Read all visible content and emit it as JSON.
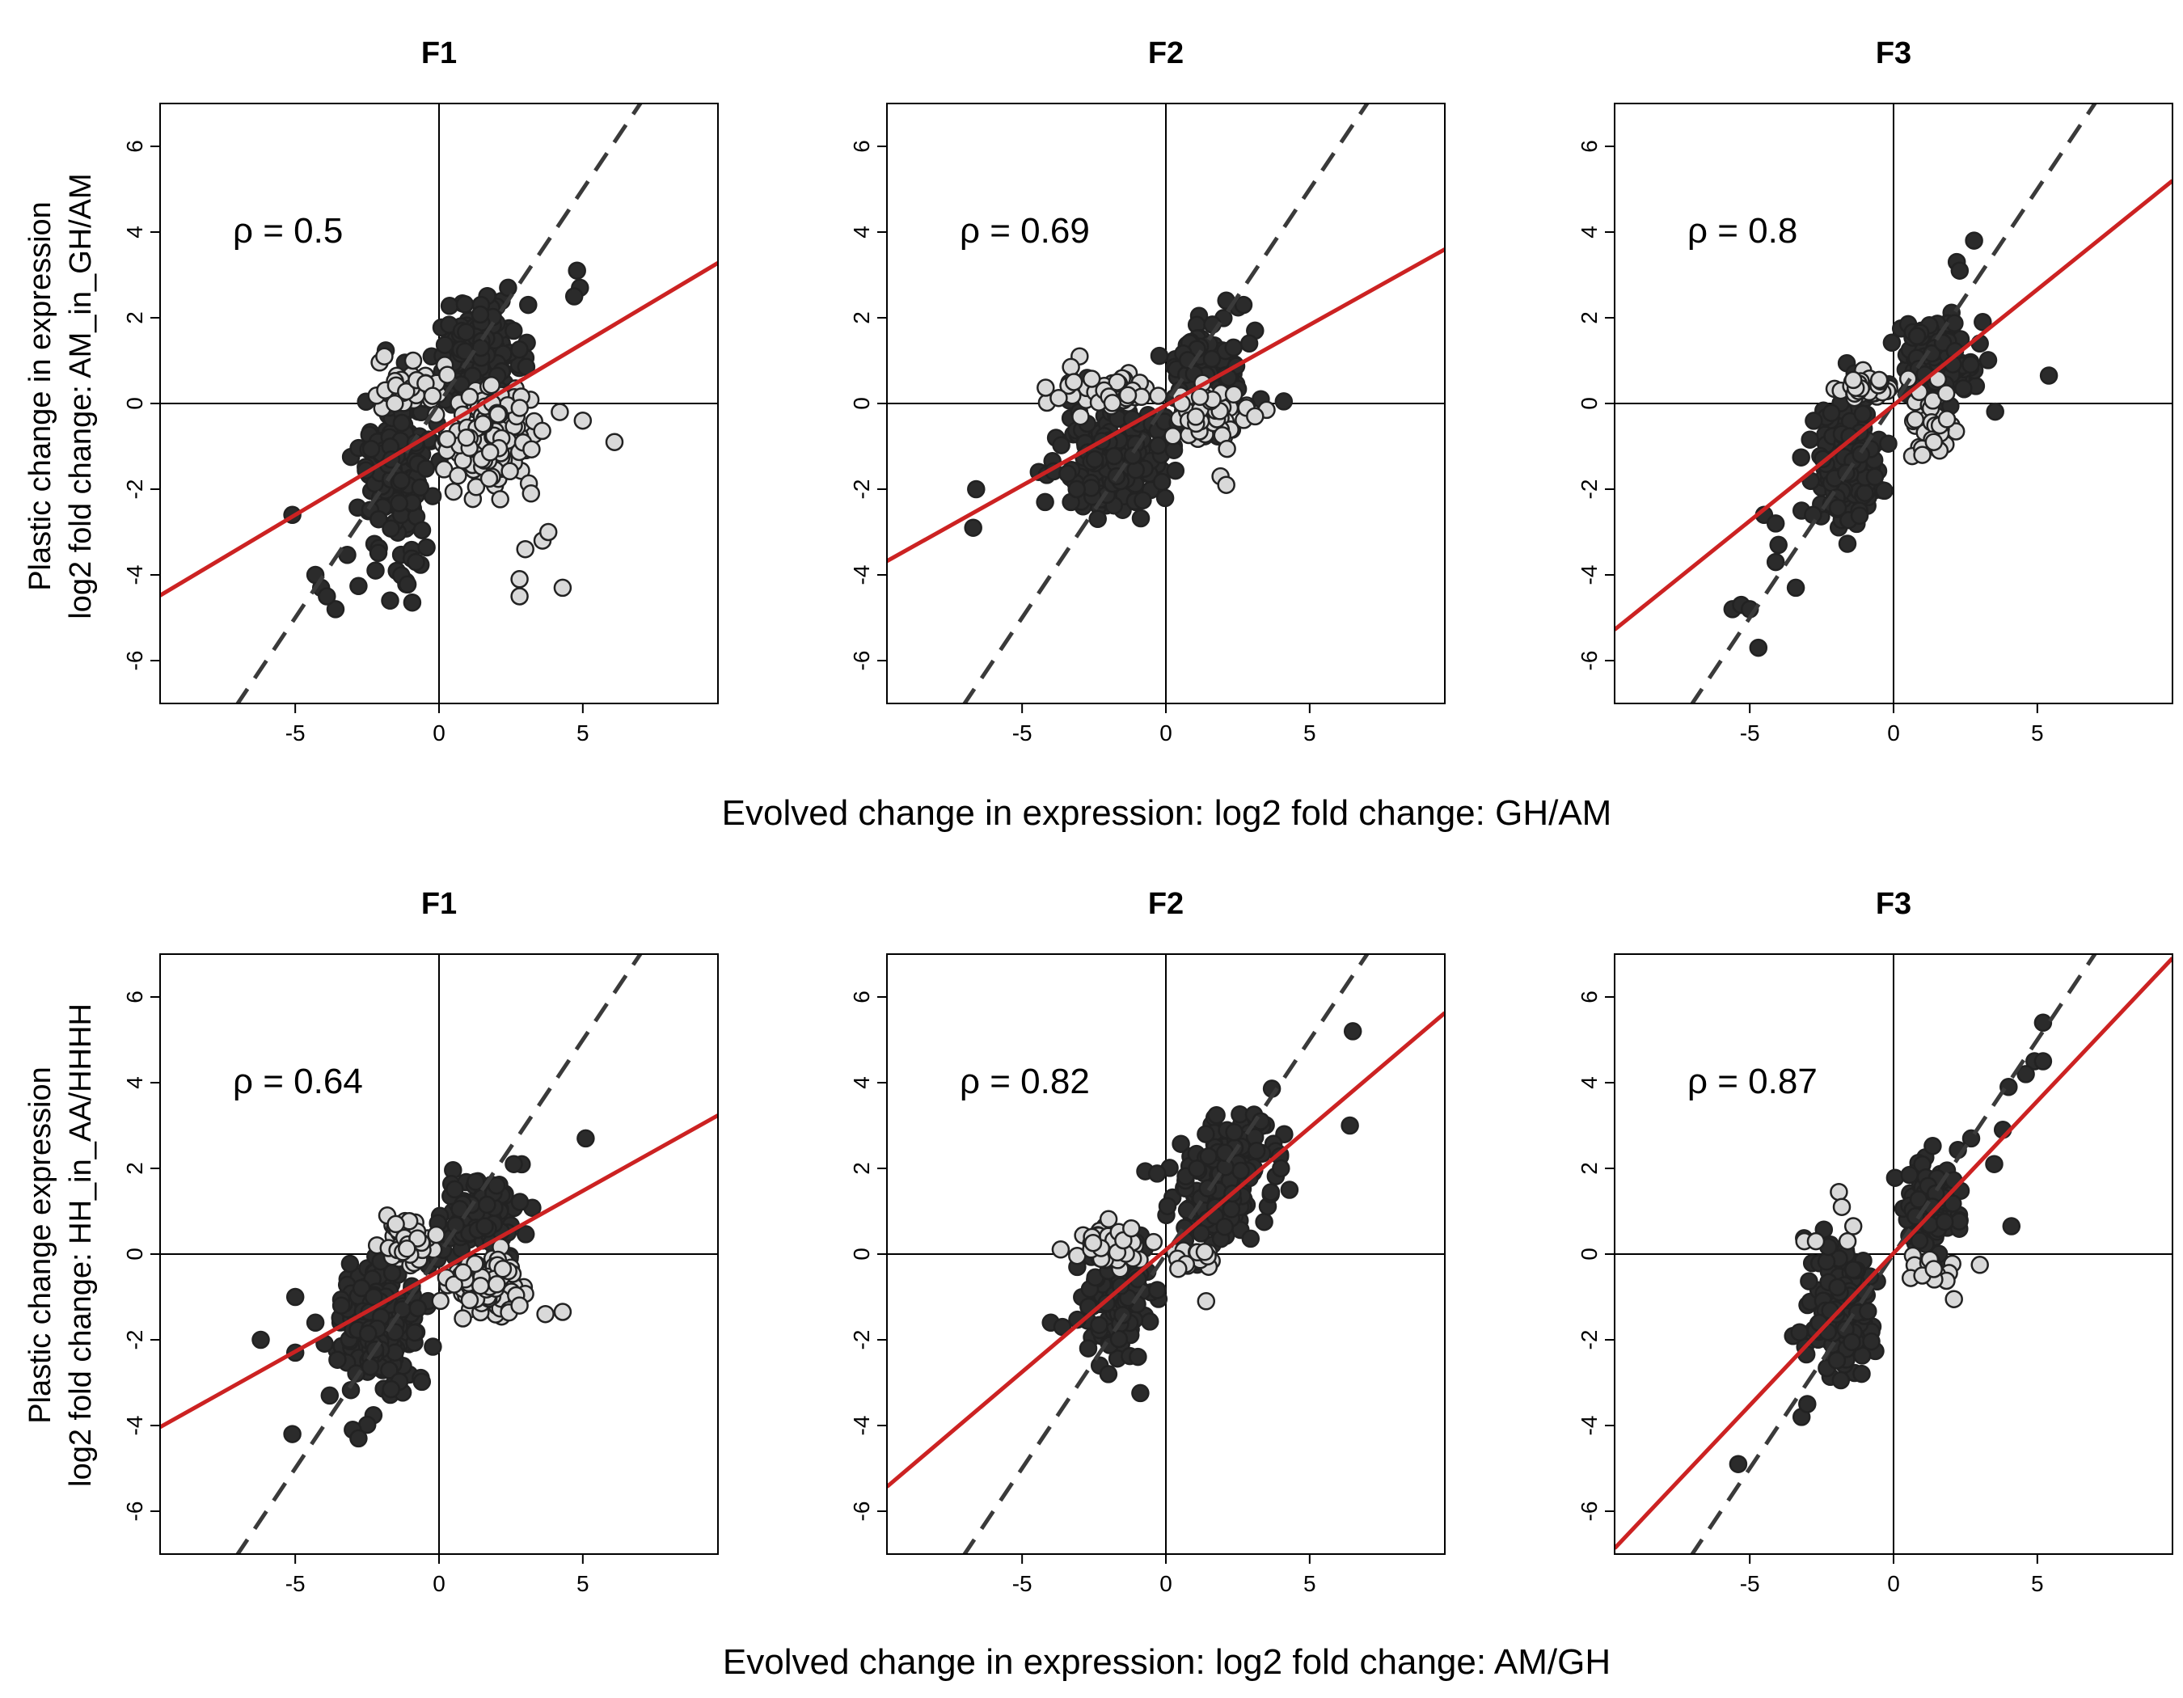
{
  "colors": {
    "dark_point": "#2b2b2b",
    "light_point": "#d9d9d9",
    "point_edge": "#222222",
    "fit_line": "#cc2222",
    "identity_line": "#3a3a3a",
    "axis": "#000000"
  },
  "rows": [
    {
      "xlabel": "Evolved change in expression: log2 fold change: GH/AM",
      "ylabel": [
        "Plastic change in expression",
        "log2 fold change: AM_in_GH/AM"
      ]
    },
    {
      "xlabel": "Evolved change in expression: log2 fold change: AM/GH",
      "ylabel": [
        "Plastic change expression",
        "log2 fold change: HH_in_AA/HHHH"
      ]
    }
  ],
  "chart_data": [
    {
      "type": "scatter",
      "title": "F1",
      "rho_label": "ρ = 0.5",
      "xlim": [
        -9.7,
        9.7
      ],
      "ylim": [
        -7,
        7
      ],
      "xticks": [
        -5,
        0,
        5
      ],
      "yticks": [
        -6,
        -4,
        -2,
        0,
        2,
        4,
        6
      ],
      "fit_line": {
        "slope": 0.4,
        "intercept": -0.6
      },
      "identity_line": {
        "slope": 1,
        "intercept": 0
      },
      "series": [
        {
          "color": "dark",
          "clusters": [
            {
              "cx": -1.5,
              "cy": -1.5,
              "sx": 0.65,
              "sy": 1.0,
              "n": 170
            },
            {
              "cx": 1.4,
              "cy": 1.1,
              "sx": 0.75,
              "sy": 0.55,
              "n": 140
            }
          ],
          "points": [
            [
              -5.1,
              -2.6
            ],
            [
              -4.1,
              -4.3
            ],
            [
              -3.6,
              -4.8
            ],
            [
              -4.3,
              -4.0
            ],
            [
              -3.9,
              -4.5
            ],
            [
              -1.7,
              -4.6
            ],
            [
              4.8,
              3.1
            ],
            [
              4.9,
              2.7
            ],
            [
              4.7,
              2.5
            ],
            [
              2.4,
              2.7
            ],
            [
              3.1,
              2.3
            ],
            [
              -0.8,
              -3.7
            ]
          ]
        },
        {
          "color": "light",
          "clusters": [
            {
              "cx": 1.8,
              "cy": -0.8,
              "sx": 0.7,
              "sy": 0.55,
              "n": 150
            },
            {
              "cx": -1.0,
              "cy": 0.4,
              "sx": 0.55,
              "sy": 0.3,
              "n": 40
            }
          ],
          "points": [
            [
              4.3,
              -4.3
            ],
            [
              2.8,
              -4.5
            ],
            [
              2.8,
              -4.1
            ],
            [
              3.6,
              -3.2
            ],
            [
              3.8,
              -3.0
            ],
            [
              3.0,
              -3.4
            ],
            [
              6.1,
              -0.9
            ],
            [
              5.0,
              -0.4
            ],
            [
              4.2,
              -0.2
            ],
            [
              3.2,
              -2.1
            ],
            [
              -1.9,
              1.1
            ],
            [
              -0.9,
              1.0
            ]
          ]
        }
      ]
    },
    {
      "type": "scatter",
      "title": "F2",
      "rho_label": "ρ = 0.69",
      "xlim": [
        -9.7,
        9.7
      ],
      "ylim": [
        -7,
        7
      ],
      "xticks": [
        -5,
        0,
        5
      ],
      "yticks": [
        -6,
        -4,
        -2,
        0,
        2,
        4,
        6
      ],
      "fit_line": {
        "slope": 0.375,
        "intercept": -0.04
      },
      "identity_line": {
        "slope": 1,
        "intercept": 0
      },
      "series": [
        {
          "color": "dark",
          "clusters": [
            {
              "cx": -1.8,
              "cy": -1.3,
              "sx": 0.9,
              "sy": 0.6,
              "n": 190
            },
            {
              "cx": 1.3,
              "cy": 0.9,
              "sx": 0.6,
              "sy": 0.55,
              "n": 110
            }
          ],
          "points": [
            [
              -6.6,
              -2.0
            ],
            [
              -6.7,
              -2.9
            ],
            [
              -4.2,
              -2.3
            ],
            [
              -3.3,
              -2.3
            ],
            [
              -3.1,
              -2.0
            ],
            [
              3.1,
              1.7
            ],
            [
              2.7,
              2.3
            ],
            [
              2.9,
              1.4
            ],
            [
              4.1,
              0.05
            ],
            [
              3.3,
              0.1
            ],
            [
              2.1,
              2.4
            ]
          ]
        },
        {
          "color": "light",
          "clusters": [
            {
              "cx": -2.0,
              "cy": 0.25,
              "sx": 0.8,
              "sy": 0.2,
              "n": 60
            },
            {
              "cx": 1.6,
              "cy": -0.3,
              "sx": 0.55,
              "sy": 0.3,
              "n": 55
            }
          ],
          "points": [
            [
              -3.0,
              1.1
            ],
            [
              -3.3,
              0.85
            ],
            [
              -3.2,
              0.5
            ],
            [
              1.9,
              -1.7
            ],
            [
              2.1,
              -1.9
            ],
            [
              2.8,
              -0.1
            ],
            [
              3.5,
              -0.15
            ],
            [
              3.1,
              -0.3
            ]
          ]
        }
      ]
    },
    {
      "type": "scatter",
      "title": "F3",
      "rho_label": "ρ = 0.8",
      "xlim": [
        -9.7,
        9.7
      ],
      "ylim": [
        -7,
        7
      ],
      "xticks": [
        -5,
        0,
        5
      ],
      "yticks": [
        -6,
        -4,
        -2,
        0,
        2,
        4,
        6
      ],
      "fit_line": {
        "slope": 0.54,
        "intercept": -0.04
      },
      "identity_line": {
        "slope": 1,
        "intercept": 0
      },
      "series": [
        {
          "color": "dark",
          "clusters": [
            {
              "cx": -1.6,
              "cy": -1.3,
              "sx": 0.6,
              "sy": 0.75,
              "n": 180
            },
            {
              "cx": 1.6,
              "cy": 1.0,
              "sx": 0.6,
              "sy": 0.5,
              "n": 150
            }
          ],
          "points": [
            [
              -5.6,
              -4.8
            ],
            [
              -5.3,
              -4.7
            ],
            [
              -5.0,
              -4.8
            ],
            [
              -4.7,
              -5.7
            ],
            [
              -4.5,
              -2.6
            ],
            [
              -4.1,
              -2.8
            ],
            [
              -4.0,
              -3.3
            ],
            [
              -3.4,
              -4.3
            ],
            [
              -3.2,
              -2.5
            ],
            [
              -2.8,
              -2.6
            ],
            [
              -4.1,
              -3.7
            ],
            [
              2.8,
              3.8
            ],
            [
              2.2,
              3.3
            ],
            [
              2.3,
              3.1
            ],
            [
              5.4,
              0.65
            ],
            [
              3.1,
              1.9
            ],
            [
              3.0,
              1.4
            ]
          ]
        },
        {
          "color": "light",
          "clusters": [
            {
              "cx": -1.0,
              "cy": 0.3,
              "sx": 0.4,
              "sy": 0.15,
              "n": 40
            },
            {
              "cx": 1.3,
              "cy": -0.5,
              "sx": 0.4,
              "sy": 0.4,
              "n": 40
            }
          ],
          "points": [
            [
              1.0,
              -1.2
            ],
            [
              1.6,
              -1.1
            ],
            [
              1.4,
              -0.9
            ],
            [
              -0.5,
              0.55
            ],
            [
              -1.4,
              0.55
            ]
          ]
        }
      ]
    },
    {
      "type": "scatter",
      "title": "F1",
      "rho_label": "ρ = 0.64",
      "xlim": [
        -9.7,
        9.7
      ],
      "ylim": [
        -7,
        7
      ],
      "xticks": [
        -5,
        0,
        5
      ],
      "yticks": [
        -6,
        -4,
        -2,
        0,
        2,
        4,
        6
      ],
      "fit_line": {
        "slope": 0.375,
        "intercept": -0.4
      },
      "identity_line": {
        "slope": 1,
        "intercept": 0
      },
      "series": [
        {
          "color": "dark",
          "clusters": [
            {
              "cx": -2.1,
              "cy": -1.7,
              "sx": 0.7,
              "sy": 0.85,
              "n": 190
            },
            {
              "cx": 1.5,
              "cy": 0.85,
              "sx": 0.65,
              "sy": 0.45,
              "n": 120
            }
          ],
          "points": [
            [
              -6.2,
              -2.0
            ],
            [
              -5.0,
              -2.3
            ],
            [
              -5.0,
              -1.0
            ],
            [
              -5.1,
              -4.2
            ],
            [
              -4.3,
              -1.6
            ],
            [
              -3.8,
              -3.3
            ],
            [
              -3.4,
              -1.2
            ],
            [
              -3.0,
              -4.1
            ],
            [
              -2.8,
              -4.3
            ],
            [
              5.1,
              2.7
            ],
            [
              2.6,
              2.1
            ],
            [
              2.0,
              1.6
            ]
          ]
        },
        {
          "color": "light",
          "clusters": [
            {
              "cx": 1.6,
              "cy": -0.7,
              "sx": 0.6,
              "sy": 0.3,
              "n": 110
            },
            {
              "cx": -1.1,
              "cy": 0.3,
              "sx": 0.45,
              "sy": 0.3,
              "n": 40
            }
          ],
          "points": [
            [
              3.7,
              -1.4
            ],
            [
              4.3,
              -1.35
            ],
            [
              2.8,
              -1.2
            ],
            [
              -1.8,
              0.9
            ],
            [
              -1.5,
              0.7
            ]
          ]
        }
      ]
    },
    {
      "type": "scatter",
      "title": "F2",
      "rho_label": "ρ = 0.82",
      "xlim": [
        -9.7,
        9.7
      ],
      "ylim": [
        -7,
        7
      ],
      "xticks": [
        -5,
        0,
        5
      ],
      "yticks": [
        -6,
        -4,
        -2,
        0,
        2,
        4,
        6
      ],
      "fit_line": {
        "slope": 0.57,
        "intercept": 0.1
      },
      "identity_line": {
        "slope": 1,
        "intercept": 0
      },
      "series": [
        {
          "color": "dark",
          "clusters": [
            {
              "cx": -1.6,
              "cy": -0.9,
              "sx": 0.6,
              "sy": 0.7,
              "n": 110
            },
            {
              "cx": 2.0,
              "cy": 1.7,
              "sx": 0.8,
              "sy": 0.75,
              "n": 200
            }
          ],
          "points": [
            [
              -4.0,
              -1.6
            ],
            [
              -3.6,
              -1.7
            ],
            [
              -2.3,
              -2.6
            ],
            [
              -2.0,
              -2.8
            ],
            [
              -2.7,
              -2.2
            ],
            [
              6.5,
              5.2
            ],
            [
              6.4,
              3.0
            ],
            [
              4.3,
              1.5
            ],
            [
              4.0,
              2.0
            ],
            [
              3.3,
              3.1
            ]
          ]
        },
        {
          "color": "light",
          "clusters": [
            {
              "cx": -1.9,
              "cy": 0.2,
              "sx": 0.5,
              "sy": 0.25,
              "n": 40
            },
            {
              "cx": 1.0,
              "cy": -0.1,
              "sx": 0.45,
              "sy": 0.15,
              "n": 18
            }
          ],
          "points": [
            [
              1.4,
              -1.1
            ],
            [
              -1.2,
              0.6
            ]
          ]
        }
      ]
    },
    {
      "type": "scatter",
      "title": "F3",
      "rho_label": "ρ = 0.87",
      "xlim": [
        -9.7,
        9.7
      ],
      "ylim": [
        -7,
        7
      ],
      "xticks": [
        -5,
        0,
        5
      ],
      "yticks": [
        -6,
        -4,
        -2,
        0,
        2,
        4,
        6
      ],
      "fit_line": {
        "slope": 0.71,
        "intercept": 0.02
      },
      "identity_line": {
        "slope": 1,
        "intercept": 0
      },
      "series": [
        {
          "color": "dark",
          "clusters": [
            {
              "cx": -1.7,
              "cy": -1.3,
              "sx": 0.55,
              "sy": 0.65,
              "n": 210
            },
            {
              "cx": 1.3,
              "cy": 1.1,
              "sx": 0.5,
              "sy": 0.5,
              "n": 110
            }
          ],
          "points": [
            [
              -5.4,
              -4.9
            ],
            [
              -3.2,
              -3.8
            ],
            [
              -3.0,
              -3.5
            ],
            [
              4.9,
              4.5
            ],
            [
              5.2,
              4.5
            ],
            [
              4.6,
              4.2
            ],
            [
              4.0,
              3.9
            ],
            [
              5.2,
              5.4
            ],
            [
              4.1,
              0.65
            ],
            [
              3.8,
              2.9
            ],
            [
              2.7,
              2.7
            ],
            [
              3.5,
              2.1
            ]
          ]
        },
        {
          "color": "light",
          "clusters": [
            {
              "cx": 1.2,
              "cy": -0.3,
              "sx": 0.4,
              "sy": 0.2,
              "n": 12
            }
          ],
          "points": [
            [
              -1.9,
              1.45
            ],
            [
              -1.8,
              1.1
            ],
            [
              -3.1,
              0.3
            ],
            [
              -2.7,
              0.3
            ],
            [
              -1.6,
              0.3
            ],
            [
              -1.4,
              0.65
            ],
            [
              2.1,
              -1.05
            ],
            [
              3.0,
              -0.25
            ],
            [
              1.0,
              -0.5
            ],
            [
              1.4,
              -0.35
            ]
          ]
        }
      ]
    }
  ]
}
